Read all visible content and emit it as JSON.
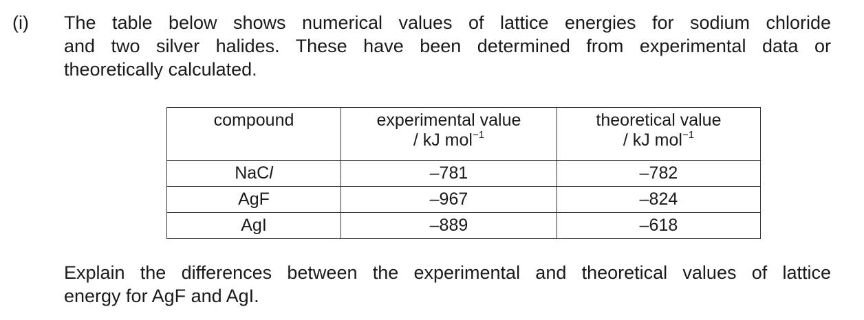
{
  "question_number": "(i)",
  "intro_lines": [
    "The table below shows numerical values of lattice energies for sodium chloride",
    "and two silver halides.  These have been determined from experimental data or",
    "theoretically calculated."
  ],
  "table": {
    "headers": {
      "compound": "compound",
      "experimental_line1": "experimental value",
      "experimental_line2": "/ kJ mol",
      "theoretical_line1": "theoretical value",
      "theoretical_line2": "/ kJ mol",
      "unit_exponent": "−1"
    },
    "rows": [
      {
        "compound_main": "NaC",
        "compound_italic": "l",
        "experimental": "–781",
        "theoretical": "–782"
      },
      {
        "compound_main": "AgF",
        "compound_italic": "",
        "experimental": "–967",
        "theoretical": "–824"
      },
      {
        "compound_main": "AgI",
        "compound_italic": "",
        "experimental": "–889",
        "theoretical": "–618"
      }
    ]
  },
  "question_lines": [
    "Explain the differences between the experimental and theoretical values of lattice",
    "energy for AgF and AgI."
  ]
}
